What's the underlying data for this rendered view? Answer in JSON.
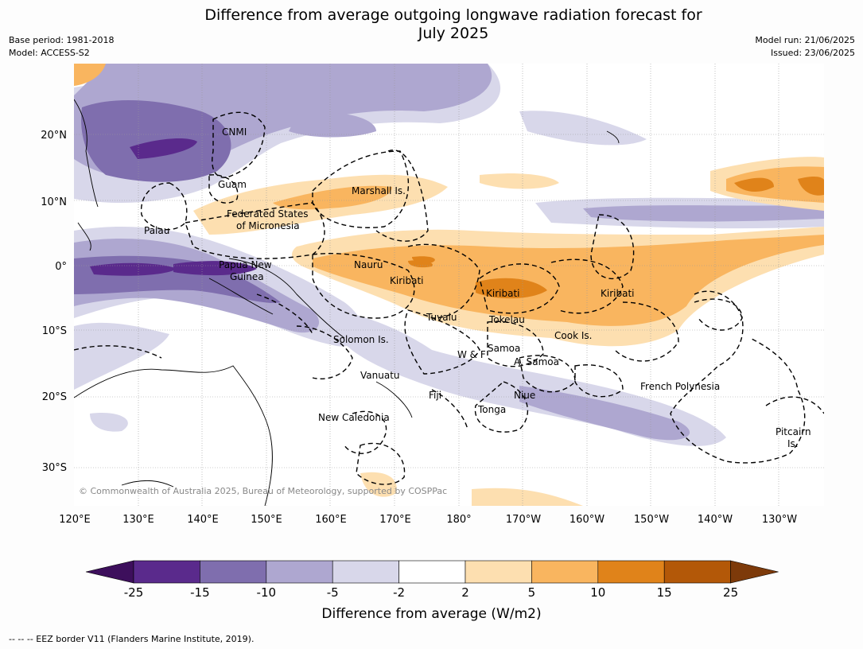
{
  "title_line1": "Difference from average outgoing longwave radiation forecast for",
  "title_line2": "July 2025",
  "base_period": "Base period: 1981-2018",
  "model": "Model: ACCESS-S2",
  "model_run": "Model run: 21/06/2025",
  "issued": "Issued: 23/06/2025",
  "copyright": "© Commonwealth of Australia 2025, Bureau of Meteorology, supported by COSPPac",
  "lon_ticks": [
    "120°E",
    "130°E",
    "140°E",
    "150°E",
    "160°E",
    "170°E",
    "180°",
    "170°W",
    "160°W",
    "150°W",
    "140°W",
    "130°W"
  ],
  "lat_ticks": [
    "20°N",
    "10°N",
    "0°",
    "10°S",
    "20°S",
    "30°S"
  ],
  "place_labels": {
    "cnmi": "CNMI",
    "guam": "Guam",
    "marshall": "Marshall Is.",
    "fsm1": "Federated States",
    "fsm2": "of Micronesia",
    "palau": "Palau",
    "png1": "Papua New",
    "png2": "Guinea",
    "nauru": "Nauru",
    "kiribati_w": "Kiribati",
    "kiribati_c": "Kiribati",
    "kiribati_e": "Kiribati",
    "tuvalu": "Tuvalu",
    "tokelau": "Tokelau",
    "cook": "Cook Is.",
    "solomon": "Solomon Is.",
    "wf": "W & F",
    "samoa": "Samoa",
    "asamoa": "A. Samoa",
    "vanuatu": "Vanuatu",
    "fiji": "Fiji",
    "niue": "Niue",
    "tonga": "Tonga",
    "frpoly": "French Polynesia",
    "newcal": "New Caledonia",
    "pitcairn1": "Pitcairn",
    "pitcairn2": "Is."
  },
  "colorbar": {
    "ticks": [
      "-25",
      "-15",
      "-10",
      "-5",
      "-2",
      "2",
      "5",
      "10",
      "15",
      "25"
    ],
    "colors": [
      "#3d0f5c",
      "#5a2a8c",
      "#7f6eae",
      "#aea7d0",
      "#d8d7ea",
      "#ffffff",
      "#fddfb0",
      "#f9b55f",
      "#e0831a",
      "#b35808",
      "#7d3a0a"
    ],
    "label": "Difference from average (W/m2)"
  },
  "footer": "--  --  -- EEZ border V11 (Flanders Marine Institute, 2019)."
}
